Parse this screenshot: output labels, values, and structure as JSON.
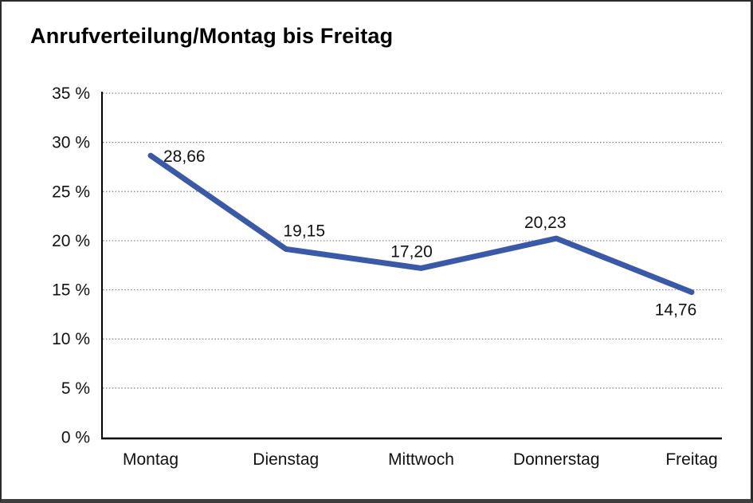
{
  "frame": {
    "background": "#ffffff",
    "border_color": "#2b2b2b"
  },
  "chart_data": {
    "type": "line",
    "title": "Anrufverteilung/Montag bis Freitag",
    "categories": [
      "Montag",
      "Dienstag",
      "Mittwoch",
      "Donnerstag",
      "Freitag"
    ],
    "series": [
      {
        "name": "Anrufverteilung",
        "values": [
          28.66,
          19.15,
          17.2,
          20.23,
          14.76
        ],
        "color": "#3a5aa8"
      }
    ],
    "value_labels": [
      "28,66",
      "19,15",
      "17,20",
      "20,23",
      "14,76"
    ],
    "label_placements": [
      "right-of-point",
      "above",
      "above",
      "above",
      "below"
    ],
    "xlabel": "",
    "ylabel": "",
    "ylim": [
      0,
      35
    ],
    "y_tick_step": 5,
    "y_ticks": [
      {
        "value": 35,
        "label": "35 %"
      },
      {
        "value": 30,
        "label": "30 %"
      },
      {
        "value": 25,
        "label": "25 %"
      },
      {
        "value": 20,
        "label": "20 %"
      },
      {
        "value": 15,
        "label": "15 %"
      },
      {
        "value": 10,
        "label": "10 %"
      },
      {
        "value": 5,
        "label": "5 %"
      },
      {
        "value": 0,
        "label": "0 %"
      }
    ],
    "grid": "horizontal-dotted",
    "legend": "none",
    "colors": {
      "line": "#3a5aa8",
      "grid": "#7d7d7d",
      "axis": "#000000",
      "text": "#111111"
    }
  }
}
